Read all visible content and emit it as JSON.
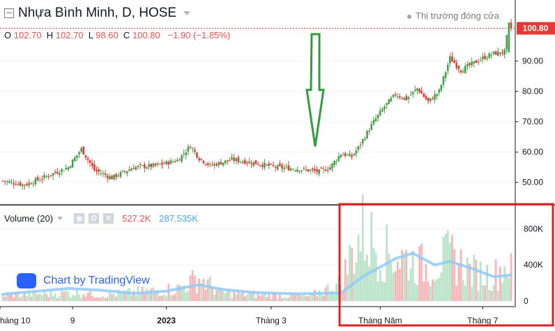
{
  "header": {
    "symbol_title": "Nhựa Bình Minh, D, HOSE",
    "market_status": "Thị trường đóng cửa",
    "ohlc": {
      "o_label": "O",
      "o": "102.70",
      "h_label": "H",
      "h": "102.70",
      "l_label": "L",
      "l": "98.60",
      "c_label": "C",
      "c": "100.80",
      "change": "−1.90 (−1.85%)"
    }
  },
  "volume_legend": {
    "label": "Volume (20)",
    "value": "527.2K",
    "ma_value": "287.535K"
  },
  "watermark": "Chart by TradingView",
  "colors": {
    "up": "#43a047",
    "down": "#e53935",
    "vol_up": "#b9e4c9",
    "vol_down": "#f6b6b8",
    "vol_ma": "#90caf9",
    "price_tag": "#e53935",
    "annotation_arrow": "#2e9e3b",
    "highlight_box": "#e02020"
  },
  "chart_data": [
    {
      "type": "candlestick",
      "title": "Nhựa Bình Minh, D, HOSE",
      "x_tick_labels": [
        "háng 10",
        "9",
        "2023",
        "Tháng 3",
        "Tháng Năm",
        "Tháng 7"
      ],
      "y_ticks": [
        50,
        60,
        70,
        80,
        90
      ],
      "y_tick_labels": [
        "50.00",
        "60.00",
        "70.00",
        "80.00",
        "90.00"
      ],
      "ylim": [
        43.5,
        106
      ],
      "last_price": 100.8,
      "last_price_label": "100.80",
      "series_anchor_closes": [
        [
          0,
          50.5
        ],
        [
          10,
          49.2
        ],
        [
          20,
          52
        ],
        [
          30,
          55
        ],
        [
          36,
          61
        ],
        [
          42,
          54
        ],
        [
          50,
          51.5
        ],
        [
          60,
          55
        ],
        [
          70,
          55.5
        ],
        [
          80,
          57.3
        ],
        [
          86,
          62
        ],
        [
          90,
          58
        ],
        [
          95,
          55.5
        ],
        [
          105,
          57.5
        ],
        [
          115,
          56.5
        ],
        [
          125,
          55
        ],
        [
          135,
          54.5
        ],
        [
          145,
          53.5
        ],
        [
          150,
          55
        ],
        [
          155,
          59.5
        ],
        [
          160,
          58.5
        ],
        [
          163,
          61.5
        ],
        [
          170,
          70
        ],
        [
          175,
          75
        ],
        [
          180,
          79
        ],
        [
          185,
          77.5
        ],
        [
          190,
          81
        ],
        [
          195,
          76.5
        ],
        [
          200,
          80
        ],
        [
          205,
          91
        ],
        [
          210,
          87
        ],
        [
          215,
          89
        ],
        [
          220,
          91
        ],
        [
          225,
          92.5
        ],
        [
          230,
          93
        ],
        [
          232,
          102.7
        ],
        [
          233,
          100.8
        ]
      ],
      "annotation": "green down-arrow pointing at the breakout"
    },
    {
      "type": "bar",
      "title": "Volume (20)",
      "y_ticks": [
        0,
        400000,
        800000
      ],
      "y_tick_labels": [
        "0",
        "400K",
        "800K"
      ],
      "ylim": [
        0,
        1050000
      ],
      "volume_anchors": [
        [
          0,
          85000
        ],
        [
          20,
          95000
        ],
        [
          35,
          120000
        ],
        [
          45,
          80000
        ],
        [
          60,
          110000
        ],
        [
          80,
          160000
        ],
        [
          90,
          300000
        ],
        [
          100,
          110000
        ],
        [
          120,
          80000
        ],
        [
          140,
          60000
        ],
        [
          155,
          220000
        ],
        [
          160,
          620000
        ],
        [
          165,
          900000
        ],
        [
          175,
          620000
        ],
        [
          185,
          550000
        ],
        [
          195,
          430000
        ],
        [
          205,
          580000
        ],
        [
          215,
          380000
        ],
        [
          225,
          330000
        ],
        [
          233,
          527200
        ]
      ],
      "ma_anchors": [
        [
          0,
          75000
        ],
        [
          30,
          140000
        ],
        [
          45,
          120000
        ],
        [
          60,
          85000
        ],
        [
          75,
          110000
        ],
        [
          90,
          180000
        ],
        [
          100,
          130000
        ],
        [
          115,
          95000
        ],
        [
          135,
          80000
        ],
        [
          155,
          90000
        ],
        [
          165,
          270000
        ],
        [
          180,
          470000
        ],
        [
          188,
          530000
        ],
        [
          198,
          400000
        ],
        [
          205,
          440000
        ],
        [
          215,
          360000
        ],
        [
          225,
          270000
        ],
        [
          233,
          287535
        ]
      ]
    }
  ]
}
